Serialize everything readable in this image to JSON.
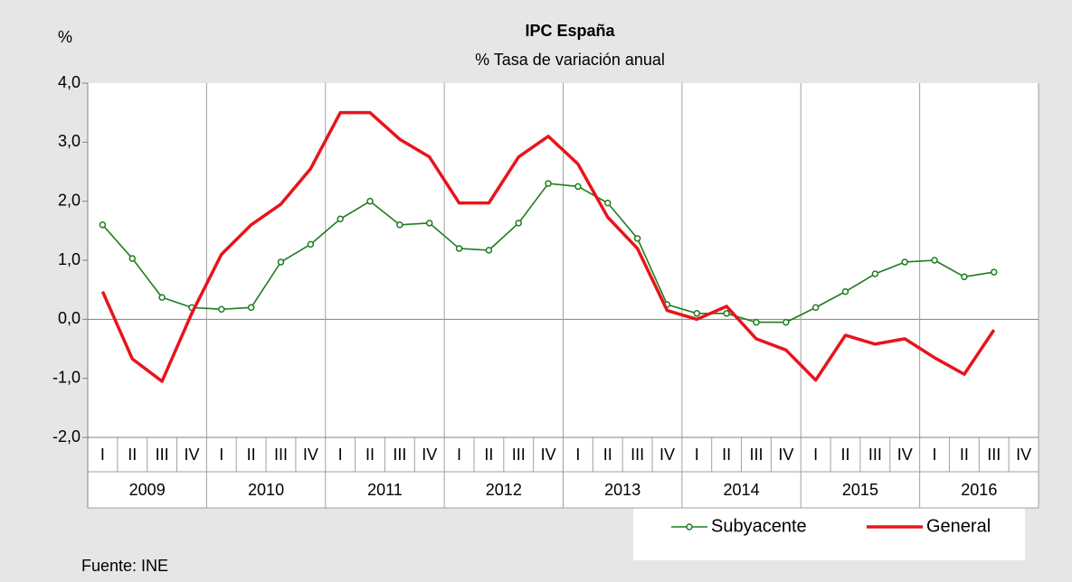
{
  "chart_data": {
    "type": "line",
    "title": "IPC España",
    "subtitle": "% Tasa de variación anual",
    "ylabel": "%",
    "source": "Fuente: INE",
    "categories": [
      "I",
      "II",
      "III",
      "IV",
      "I",
      "II",
      "III",
      "IV",
      "I",
      "II",
      "III",
      "IV",
      "I",
      "II",
      "III",
      "IV",
      "I",
      "II",
      "III",
      "IV",
      "I",
      "II",
      "III",
      "IV",
      "I",
      "II",
      "III",
      "IV",
      "I",
      "II",
      "III",
      "IV"
    ],
    "years": [
      "2009",
      "2010",
      "2011",
      "2012",
      "2013",
      "2014",
      "2015",
      "2016"
    ],
    "series": [
      {
        "name": "Subyacente",
        "color": "#1e7d1e",
        "marker": true,
        "values": [
          1.6,
          1.03,
          0.37,
          0.2,
          0.17,
          0.2,
          0.97,
          1.27,
          1.7,
          2.0,
          1.6,
          1.63,
          1.2,
          1.17,
          1.63,
          2.3,
          2.25,
          1.97,
          1.37,
          0.25,
          0.1,
          0.1,
          -0.05,
          -0.05,
          0.2,
          0.47,
          0.77,
          0.97,
          1.0,
          0.72,
          0.8,
          null
        ]
      },
      {
        "name": "General",
        "color": "#e8141b",
        "marker": false,
        "values": [
          0.47,
          -0.67,
          -1.05,
          0.1,
          1.1,
          1.6,
          1.95,
          2.55,
          3.5,
          3.5,
          3.05,
          2.75,
          1.97,
          1.97,
          2.75,
          3.1,
          2.63,
          1.73,
          1.2,
          0.15,
          0.0,
          0.22,
          -0.33,
          -0.52,
          -1.03,
          -0.27,
          -0.42,
          -0.33,
          -0.65,
          -0.93,
          -0.18,
          null
        ]
      }
    ],
    "ylim": [
      -2,
      4
    ],
    "yticks": [
      {
        "value": -2,
        "label": "-2,0"
      },
      {
        "value": -1,
        "label": "-1,0"
      },
      {
        "value": 0,
        "label": "0,0"
      },
      {
        "value": 1,
        "label": "1,0"
      },
      {
        "value": 2,
        "label": "2,0"
      },
      {
        "value": 3,
        "label": "3,0"
      },
      {
        "value": 4,
        "label": "4,0"
      }
    ],
    "legend": "bottom-right"
  }
}
